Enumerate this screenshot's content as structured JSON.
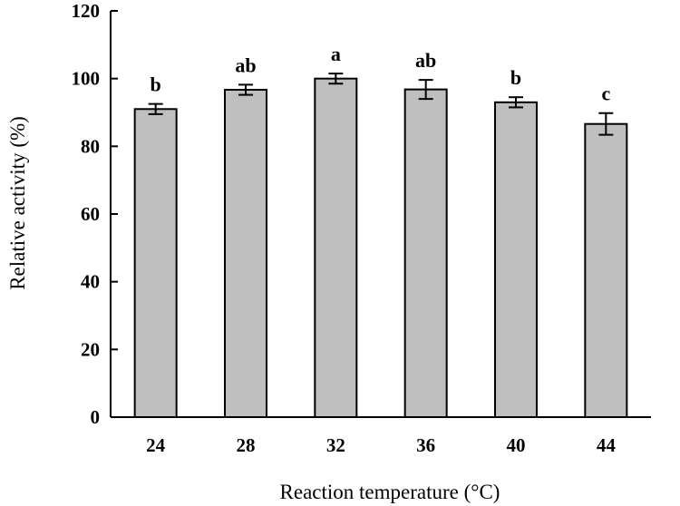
{
  "chart_data": {
    "type": "bar",
    "categories": [
      "24",
      "28",
      "32",
      "36",
      "40",
      "44"
    ],
    "values": [
      91,
      96.7,
      100,
      96.8,
      93,
      86.6
    ],
    "errors": [
      1.5,
      1.5,
      1.5,
      2.8,
      1.5,
      3.2
    ],
    "significance_labels": [
      "b",
      "ab",
      "a",
      "ab",
      "b",
      "c"
    ],
    "xlabel": "Reaction temperature (°C)",
    "ylabel": "Relative activity (%)",
    "ylim": [
      0,
      120
    ],
    "yticks": [
      0,
      20,
      40,
      60,
      80,
      100,
      120
    ],
    "bar_color": "#bfbfbf",
    "grid": false,
    "legend": "none"
  }
}
